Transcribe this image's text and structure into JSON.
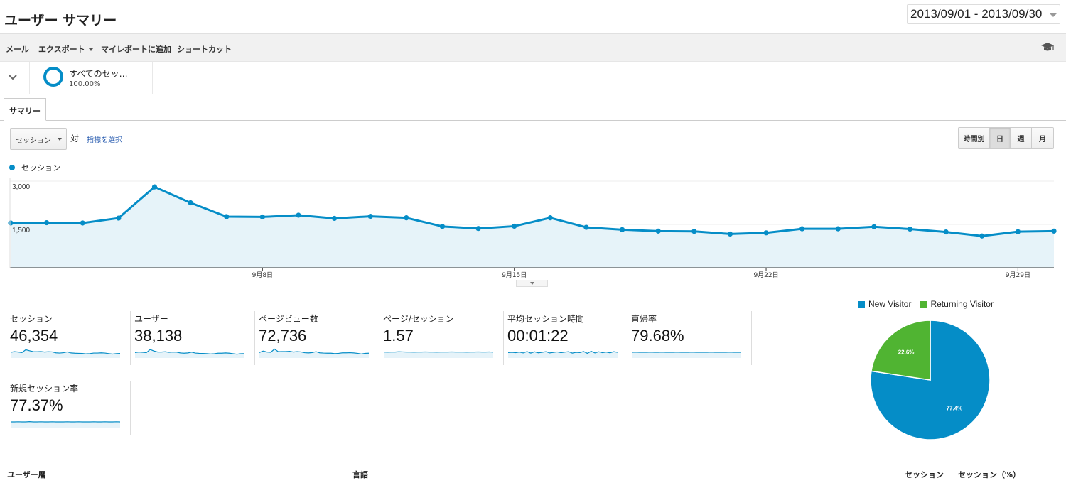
{
  "page": {
    "title": "ユーザー サマリー"
  },
  "date_range": {
    "label": "2013/09/01 - 2013/09/30"
  },
  "toolbar": {
    "items": [
      "メール",
      "エクスポート",
      "マイレポートに追加",
      "ショートカット"
    ],
    "icon": "graduation-cap-icon"
  },
  "segment": {
    "name": "すべてのセッ…",
    "percent": "100.00%",
    "icon": "segment-ring-icon"
  },
  "tabs": {
    "summary": "サマリー"
  },
  "controls": {
    "metric_select": "セッション",
    "vs_label": "対",
    "pick_metric": "指標を選択",
    "period_buttons": [
      "時間別",
      "日",
      "週",
      "月"
    ],
    "active_period": "日"
  },
  "chart_data": {
    "type": "area",
    "series": [
      {
        "name": "セッション",
        "values": [
          1550,
          1560,
          1550,
          1720,
          2800,
          2250,
          1770,
          1760,
          1820,
          1710,
          1780,
          1730,
          1430,
          1360,
          1440,
          1730,
          1400,
          1320,
          1270,
          1260,
          1170,
          1210,
          1350,
          1350,
          1420,
          1340,
          1240,
          1100,
          1250,
          1270
        ]
      }
    ],
    "y_ticks": [
      "3,000",
      "1,500"
    ],
    "ylim": [
      0,
      3000
    ],
    "x_ticks": [
      "9月8日",
      "9月15日",
      "9月22日",
      "9月29日"
    ],
    "x_tick_index": [
      7,
      14,
      21,
      28
    ],
    "color": "#058dc7",
    "fill": "#e6f3f9",
    "legend_position": "top-left"
  },
  "scorecards": [
    {
      "label": "セッション",
      "value": "46,354",
      "spark": [
        50,
        55,
        52,
        48,
        70,
        62,
        55,
        54,
        56,
        52,
        54,
        53,
        46,
        44,
        47,
        53,
        45,
        43,
        42,
        41,
        38,
        40,
        44,
        44,
        46,
        44,
        40,
        36,
        40,
        41
      ]
    },
    {
      "label": "ユーザー",
      "value": "38,138",
      "spark": [
        48,
        52,
        50,
        47,
        72,
        60,
        52,
        52,
        54,
        50,
        52,
        51,
        45,
        43,
        45,
        51,
        44,
        42,
        41,
        40,
        37,
        39,
        43,
        43,
        45,
        43,
        39,
        35,
        39,
        40
      ]
    },
    {
      "label": "ページビュー数",
      "value": "72,736",
      "spark": [
        48,
        60,
        52,
        50,
        75,
        55,
        56,
        56,
        58,
        52,
        55,
        53,
        47,
        45,
        48,
        55,
        46,
        44,
        43,
        43,
        40,
        42,
        46,
        46,
        47,
        45,
        42,
        37,
        42,
        43
      ]
    },
    {
      "label": "ページ/セッション",
      "value": "1.57",
      "spark": [
        52,
        51,
        52,
        52,
        54,
        53,
        52,
        52,
        51,
        52,
        52,
        53,
        52,
        52,
        51,
        52,
        52,
        52,
        53,
        52,
        52,
        52,
        51,
        52,
        52,
        53,
        52,
        52,
        53,
        51
      ]
    },
    {
      "label": "平均セッション時間",
      "value": "00:01:22",
      "spark": [
        48,
        50,
        47,
        52,
        45,
        56,
        44,
        54,
        46,
        50,
        55,
        45,
        49,
        53,
        47,
        51,
        55,
        44,
        50,
        48,
        56,
        42,
        58,
        45,
        54,
        47,
        52,
        46,
        55,
        50
      ]
    },
    {
      "label": "直帰率",
      "value": "79.68%",
      "spark": [
        50,
        51,
        50,
        50,
        50,
        51,
        50,
        50,
        51,
        50,
        50,
        50,
        51,
        50,
        50,
        50,
        51,
        50,
        50,
        50,
        50,
        51,
        50,
        50,
        50,
        50,
        51,
        50,
        50,
        50
      ]
    },
    {
      "label": "新規セッション率",
      "value": "77.37%",
      "spark": [
        50,
        50,
        51,
        50,
        50,
        52,
        50,
        50,
        51,
        50,
        50,
        51,
        50,
        50,
        50,
        51,
        50,
        50,
        51,
        50,
        50,
        50,
        51,
        50,
        50,
        51,
        50,
        50,
        51,
        50
      ]
    }
  ],
  "pie": {
    "type": "pie",
    "slices": [
      {
        "label": "New Visitor",
        "value": 77.4,
        "display": "77.4%",
        "color": "#058dc7"
      },
      {
        "label": "Returning Visitor",
        "value": 22.6,
        "display": "22.6%",
        "color": "#50b432"
      }
    ]
  },
  "bottom_headers": {
    "user_layer": "ユーザー層",
    "language": "言語",
    "sessions": "セッション",
    "sessions_pct": "セッション（%）"
  }
}
